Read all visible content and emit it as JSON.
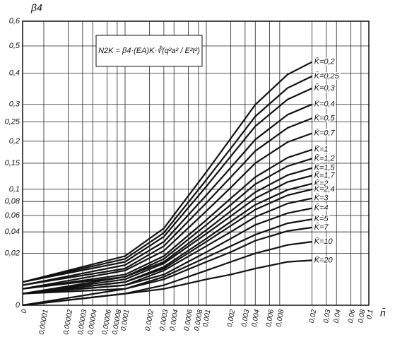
{
  "chart_data": {
    "type": "line",
    "ylabel": "β4",
    "xlabel": "n̄",
    "annotation": "N2K = β4·(EA)K·∛(q²a² / E²t²)",
    "xscale": "log",
    "yscale": "sqrt",
    "grid": true,
    "x": [
      0,
      0.0001,
      0.0003,
      0.001,
      0.002,
      0.004,
      0.01,
      0.02
    ],
    "xlim": [
      0,
      0.1
    ],
    "xticks": [
      0,
      {
        "value": 1e-05,
        "label": "0,00001"
      },
      {
        "value": 2e-05,
        "label": "0,00002"
      },
      {
        "value": 3e-05,
        "label": "0,00003"
      },
      {
        "value": 4e-05,
        "label": "0,00004"
      },
      {
        "value": 6e-05,
        "label": "0,00006"
      },
      {
        "value": 8e-05,
        "label": "0,00008"
      },
      {
        "value": 0.0001,
        "label": "0,0001"
      },
      {
        "value": 0.0002,
        "label": "0,0002"
      },
      {
        "value": 0.0003,
        "label": "0,0003"
      },
      {
        "value": 0.0004,
        "label": "0,0004"
      },
      {
        "value": 0.0006,
        "label": "0,0006"
      },
      {
        "value": 0.0008,
        "label": "0,0008"
      },
      {
        "value": 0.001,
        "label": "0,001"
      },
      {
        "value": 0.002,
        "label": "0,002"
      },
      {
        "value": 0.003,
        "label": "0,003"
      },
      {
        "value": 0.004,
        "label": "0,004"
      },
      {
        "value": 0.006,
        "label": "0,006"
      },
      {
        "value": 0.008,
        "label": "0,008"
      },
      {
        "value": 0.02,
        "label": "0,02"
      },
      {
        "value": 0.03,
        "label": "0,03"
      },
      {
        "value": 0.04,
        "label": "0,04"
      },
      {
        "value": 0.06,
        "label": "0,06"
      },
      {
        "value": 0.08,
        "label": "0,08"
      },
      {
        "value": 0.1,
        "label": "0,1"
      }
    ],
    "ylim": [
      0,
      0.6
    ],
    "yticks": [
      0,
      {
        "value": 0.02,
        "label": "0,02"
      },
      {
        "value": 0.04,
        "label": "0,04"
      },
      {
        "value": 0.06,
        "label": "0,06"
      },
      {
        "value": 0.08,
        "label": "0,08"
      },
      {
        "value": 0.1,
        "label": "0,1"
      },
      {
        "value": 0.15,
        "label": "0,15"
      },
      {
        "value": 0.2,
        "label": "0,2"
      },
      {
        "value": 0.25,
        "label": "0,25"
      },
      {
        "value": 0.3,
        "label": "0,3"
      },
      {
        "value": 0.4,
        "label": "0,4"
      },
      {
        "value": 0.5,
        "label": "0,5"
      },
      {
        "value": 0.6,
        "label": "0,6"
      }
    ],
    "series": [
      {
        "name": "K̄=0,2",
        "color": "#111",
        "values": [
          0.004,
          0.018,
          0.044,
          0.132,
          0.207,
          0.299,
          0.396,
          0.44
        ]
      },
      {
        "name": "K̄=0,25",
        "color": "#111",
        "values": [
          0.004,
          0.016,
          0.039,
          0.117,
          0.183,
          0.265,
          0.351,
          0.39
        ]
      },
      {
        "name": "K̄=0,3",
        "color": "#111",
        "values": [
          0.004,
          0.014,
          0.035,
          0.105,
          0.165,
          0.238,
          0.315,
          0.35
        ]
      },
      {
        "name": "K̄=0,4",
        "color": "#111",
        "values": [
          0.003,
          0.012,
          0.03,
          0.09,
          0.141,
          0.204,
          0.27,
          0.3
        ]
      },
      {
        "name": "K̄=0,5",
        "color": "#111",
        "values": [
          0.003,
          0.01,
          0.026,
          0.078,
          0.122,
          0.177,
          0.234,
          0.26
        ]
      },
      {
        "name": "K̄=0,7",
        "color": "#111",
        "values": [
          0.002,
          0.009,
          0.022,
          0.066,
          0.103,
          0.15,
          0.198,
          0.22
        ]
      },
      {
        "name": "K̄=1",
        "color": "#111",
        "values": [
          0.002,
          0.007,
          0.018,
          0.054,
          0.085,
          0.122,
          0.162,
          0.18
        ]
      },
      {
        "name": "K̄=1,2",
        "color": "#111",
        "values": [
          0.002,
          0.006,
          0.016,
          0.048,
          0.075,
          0.109,
          0.144,
          0.16
        ]
      },
      {
        "name": "K̄=1,5",
        "color": "#111",
        "values": [
          0.001,
          0.006,
          0.014,
          0.042,
          0.066,
          0.095,
          0.126,
          0.14
        ]
      },
      {
        "name": "K̄=1,7",
        "color": "#111",
        "values": [
          0.001,
          0.005,
          0.013,
          0.038,
          0.059,
          0.085,
          0.113,
          0.125
        ]
      },
      {
        "name": "K̄=2",
        "color": "#111",
        "values": [
          0.001,
          0.004,
          0.011,
          0.033,
          0.052,
          0.075,
          0.099,
          0.11
        ]
      },
      {
        "name": "K̄=2,4",
        "color": "#111",
        "values": [
          0.001,
          0.004,
          0.01,
          0.03,
          0.047,
          0.068,
          0.09,
          0.1
        ]
      },
      {
        "name": "K̄=3",
        "color": "#111",
        "values": [
          0.001,
          0.003,
          0.009,
          0.026,
          0.04,
          0.058,
          0.077,
          0.085
        ]
      },
      {
        "name": "K̄=4",
        "color": "#111",
        "values": [
          0.001,
          0.003,
          0.007,
          0.021,
          0.033,
          0.048,
          0.063,
          0.07
        ]
      },
      {
        "name": "K̄=5",
        "color": "#111",
        "values": [
          0.001,
          0.002,
          0.006,
          0.017,
          0.026,
          0.037,
          0.05,
          0.055
        ]
      },
      {
        "name": "K̄=7",
        "color": "#111",
        "values": [
          0,
          0.002,
          0.005,
          0.014,
          0.021,
          0.031,
          0.041,
          0.045
        ]
      },
      {
        "name": "K̄=10",
        "color": "#111",
        "values": [
          0,
          0.001,
          0.003,
          0.009,
          0.014,
          0.02,
          0.027,
          0.03
        ]
      },
      {
        "name": "K̄=20",
        "color": "#111",
        "values": [
          0,
          0.001,
          0.002,
          0.005,
          0.007,
          0.01,
          0.014,
          0.015
        ]
      }
    ]
  }
}
